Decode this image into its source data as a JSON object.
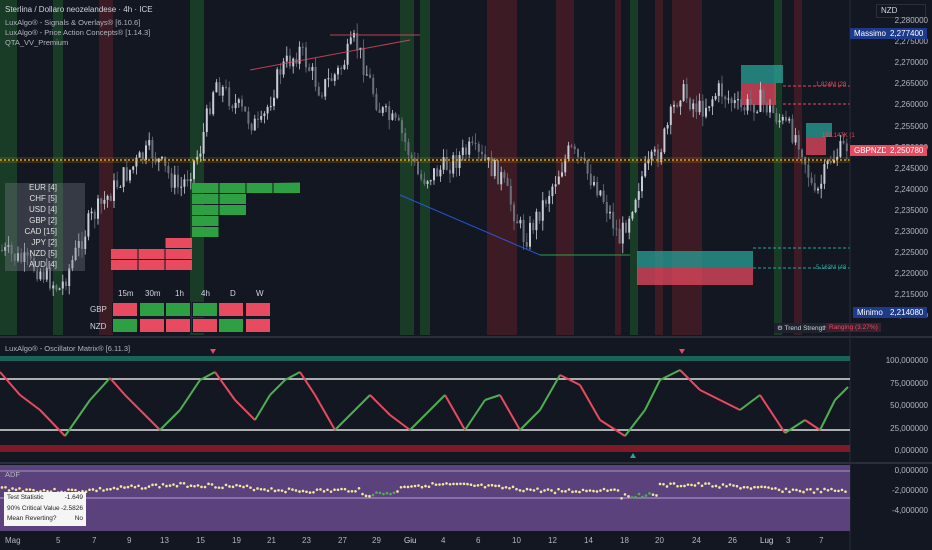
{
  "header": {
    "title": "Sterlina / Dollaro neozelandese · 4h · ICE",
    "indicators": [
      "LuxAlgo® - Signals & Overlays® [6.10.6]",
      "LuxAlgo® - Price Action Concepts® [1.14.3]",
      "QTA_VV_Premium"
    ],
    "currency_button": "NZD"
  },
  "main_axis": {
    "ticks": [
      "2,280000",
      "2,275000",
      "2,270000",
      "2,265000",
      "2,260000",
      "2,255000",
      "2,250000",
      "2,245000",
      "2,240000",
      "2,235000",
      "2,230000",
      "2,225000",
      "2,220000",
      "2,215000",
      "2,210000"
    ],
    "max_label": "Massimo",
    "max_value": "2,277400",
    "min_label": "Minimo",
    "min_value": "2,214080",
    "price_label": "GBPNZD",
    "price_value": "2,250780"
  },
  "zone_labels": [
    "1.824M (28",
    "153.147K (1",
    "5.163M (48"
  ],
  "trend_strength": {
    "label": "Trend Strength",
    "value": "Ranging (3.27%)"
  },
  "currency_strength": {
    "rows": [
      "EUR [4]",
      "CHF [5]",
      "USD [4]",
      "GBP [2]",
      "CAD [15]",
      "JPY [2]",
      "NZD [5]",
      "AUD [4]"
    ]
  },
  "mtf_table": {
    "columns": [
      "15m",
      "30m",
      "1h",
      "4h",
      "D",
      "W"
    ],
    "rows": [
      {
        "name": "GBP",
        "colors": [
          "#e84a5f",
          "#2ea043",
          "#2ea043",
          "#2ea043",
          "#e84a5f",
          "#e84a5f"
        ]
      },
      {
        "name": "NZD",
        "colors": [
          "#2ea043",
          "#e84a5f",
          "#e84a5f",
          "#e84a5f",
          "#2ea043",
          "#e84a5f"
        ]
      }
    ]
  },
  "oscillator": {
    "title": "LuxAlgo® - Oscillator Matrix® [6.11.3]",
    "ticks": [
      "100,000000",
      "75,000000",
      "50,000000",
      "25,000000",
      "0,000000"
    ]
  },
  "adf": {
    "title": "ADF",
    "ticks": [
      "0,000000",
      "-2,000000",
      "-4,000000"
    ],
    "rows": [
      {
        "label": "Test Statistic",
        "value": "-1.649"
      },
      {
        "label": "90% Critical Value",
        "value": "-2.5826"
      },
      {
        "label": "Mean Reverting?",
        "value": "No"
      }
    ]
  },
  "x_axis": [
    "Mag",
    "5",
    "7",
    "9",
    "13",
    "15",
    "19",
    "21",
    "23",
    "27",
    "29",
    "Giu",
    "4",
    "6",
    "10",
    "12",
    "14",
    "18",
    "20",
    "24",
    "26",
    "Lug",
    "3",
    "7"
  ],
  "colors": {
    "bull": "#2ea043",
    "bear": "#e84a5f",
    "price_line": "#f0a500",
    "background": "#131722"
  }
}
